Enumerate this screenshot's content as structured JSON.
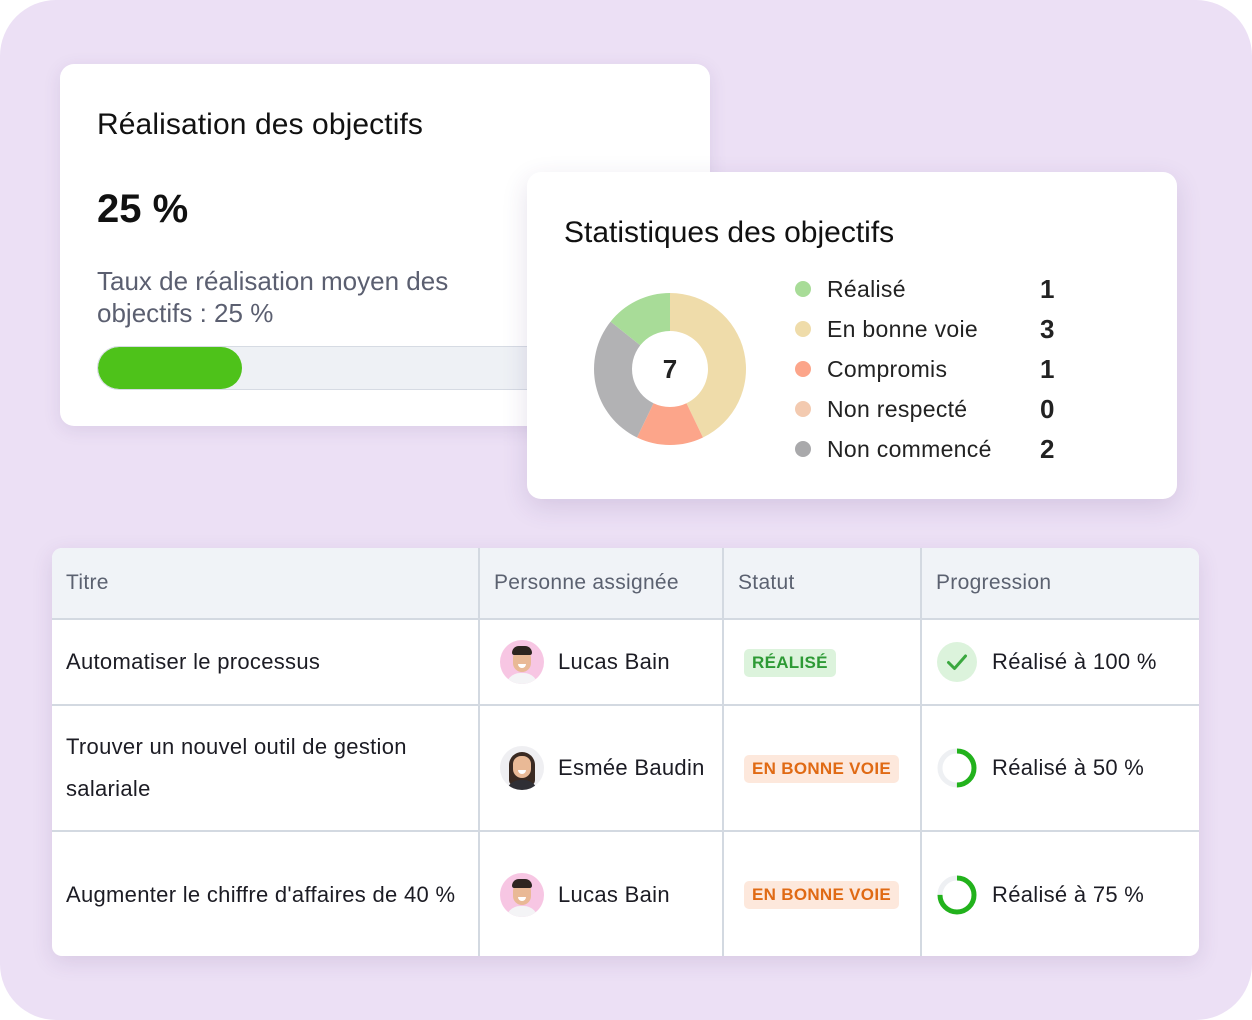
{
  "goal_card": {
    "title": "Réalisation des objectifs",
    "value": "25 %",
    "description": "Taux de réalisation moyen des objectifs : 25 %",
    "progress_fraction": 0.25,
    "progress_color": "#4ec21a"
  },
  "stats_card": {
    "title": "Statistiques des objectifs",
    "total": "7",
    "chart_data": {
      "type": "pie",
      "total": 7,
      "slices": [
        {
          "label": "Réalisé",
          "value": 1,
          "color": "#a8dc98"
        },
        {
          "label": "En bonne voie",
          "value": 3,
          "color": "#efdcaa"
        },
        {
          "label": "Compromis",
          "value": 1,
          "color": "#fca58a"
        },
        {
          "label": "Non respecté",
          "value": 0,
          "color": "#f3cab0"
        },
        {
          "label": "Non commencé",
          "value": 2,
          "color": "#b2b2b4"
        }
      ]
    },
    "legend": [
      {
        "label": "Réalisé",
        "count": "1",
        "color": "#a8dc98"
      },
      {
        "label": "En bonne voie",
        "count": "3",
        "color": "#efdcaa"
      },
      {
        "label": "Compromis",
        "count": "1",
        "color": "#fca58a"
      },
      {
        "label": "Non respecté",
        "count": "0",
        "color": "#f3cab0"
      },
      {
        "label": "Non commencé",
        "count": "2",
        "color": "#a9a9ab"
      }
    ]
  },
  "table": {
    "headers": {
      "title": "Titre",
      "assignee": "Personne assignée",
      "status": "Statut",
      "progress": "Progression"
    },
    "rows": [
      {
        "title": "Automatiser le processus",
        "assignee": "Lucas Bain",
        "avatar": "lucas-avatar",
        "status": "RÉALISÉ",
        "status_kind": "done",
        "progress_label": "Réalisé à 100 %",
        "progress_fraction": 1.0,
        "progress_icon": "check-circle-icon"
      },
      {
        "title": "Trouver un nouvel outil de gestion salariale",
        "assignee": "Esmée Baudin",
        "avatar": "esmee-avatar",
        "status": "EN BONNE VOIE",
        "status_kind": "ontrack",
        "progress_label": "Réalisé à 50 %",
        "progress_fraction": 0.5,
        "progress_icon": "progress-ring-icon"
      },
      {
        "title": "Augmenter le chiffre d'affaires de 40 %",
        "assignee": "Lucas Bain",
        "avatar": "lucas-avatar",
        "status": "EN BONNE VOIE",
        "status_kind": "ontrack",
        "progress_label": "Réalisé à 75 %",
        "progress_fraction": 0.75,
        "progress_icon": "progress-ring-icon"
      }
    ]
  }
}
